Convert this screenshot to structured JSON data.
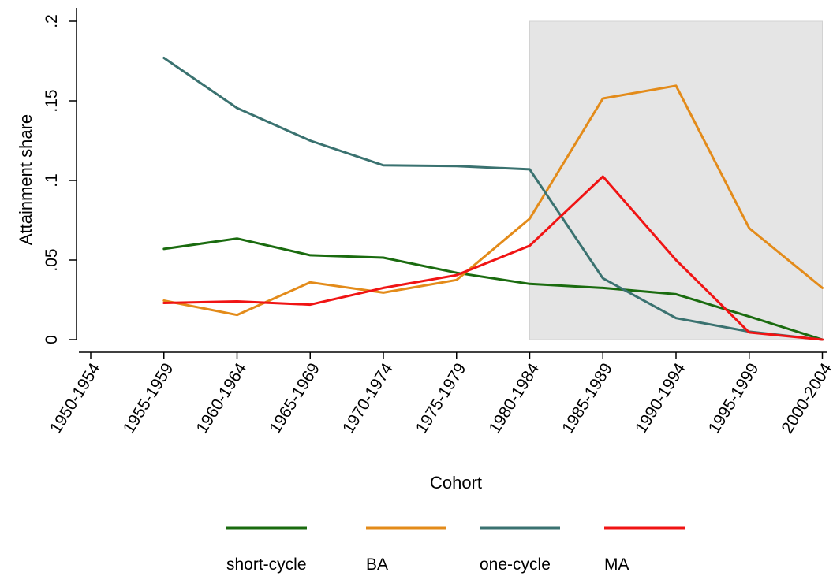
{
  "chart_data": {
    "type": "line",
    "title": "",
    "xlabel": "Cohort",
    "ylabel": "Attainment share",
    "categories": [
      "1950-1954",
      "1955-1959",
      "1960-1964",
      "1965-1969",
      "1970-1974",
      "1975-1979",
      "1980-1984",
      "1985-1989",
      "1990-1994",
      "1995-1999",
      "2000-2004"
    ],
    "ylim": [
      0,
      0.2
    ],
    "yticks": [
      {
        "value": 0,
        "label": "0"
      },
      {
        "value": 0.05,
        "label": ".05"
      },
      {
        "value": 0.1,
        "label": ".1"
      },
      {
        "value": 0.15,
        "label": ".15"
      },
      {
        "value": 0.2,
        "label": ".2"
      }
    ],
    "shaded_region": {
      "from": "1980-1984",
      "to": "2000-2004",
      "ymin": 0,
      "ymax": 0.2,
      "color": "#e5e5e5"
    },
    "grid": false,
    "legend_position": "bottom",
    "series": [
      {
        "name": "short-cycle",
        "color": "#1a6b0f",
        "values": [
          null,
          0.057,
          0.0635,
          0.053,
          0.0515,
          0.042,
          0.035,
          0.0325,
          0.0285,
          0.0145,
          0.0
        ]
      },
      {
        "name": "BA",
        "color": "#e38b1a",
        "values": [
          null,
          0.0245,
          0.0155,
          0.036,
          0.0295,
          0.0375,
          0.076,
          0.1515,
          0.1595,
          0.07,
          0.0325
        ]
      },
      {
        "name": "one-cycle",
        "color": "#3a7270",
        "values": [
          null,
          0.177,
          0.1455,
          0.125,
          0.1095,
          0.109,
          0.107,
          0.0385,
          0.0135,
          0.005,
          0.0
        ]
      },
      {
        "name": "MA",
        "color": "#f01414",
        "values": [
          null,
          0.023,
          0.024,
          0.022,
          0.0325,
          0.0405,
          0.059,
          0.1025,
          0.05,
          0.0045,
          0.0
        ]
      }
    ]
  }
}
